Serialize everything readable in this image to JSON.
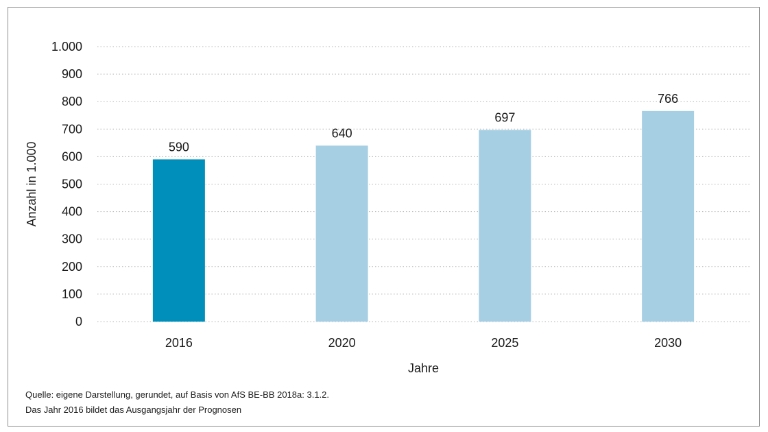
{
  "chart_data": {
    "type": "bar",
    "categories": [
      "2016",
      "2020",
      "2025",
      "2030"
    ],
    "values": [
      590,
      640,
      697,
      766
    ],
    "data_labels": [
      "590",
      "640",
      "697",
      "766"
    ],
    "title": "",
    "xlabel": "Jahre",
    "ylabel": "Anzahl in 1.000",
    "ylim": [
      0,
      1000
    ],
    "yticks": [
      0,
      100,
      200,
      300,
      400,
      500,
      600,
      700,
      800,
      900,
      1000
    ],
    "ytick_labels": [
      "0",
      "100",
      "200",
      "300",
      "400",
      "500",
      "600",
      "700",
      "800",
      "900",
      "1.000"
    ],
    "grid": true,
    "legend": "none",
    "colors": {
      "highlight": "#008fbb",
      "forecast": "#a6cfe4",
      "gridline": "#b3b3b3",
      "axis_text": "#1a1a1a"
    },
    "bar_colors": [
      "highlight",
      "forecast",
      "forecast",
      "forecast"
    ]
  },
  "notes": {
    "source": "Quelle: eigene Darstellung, gerundet, auf Basis von AfS BE-BB 2018a: 3.1.2.",
    "remark": "Das Jahr 2016 bildet das Ausgangsjahr der Prognosen"
  }
}
